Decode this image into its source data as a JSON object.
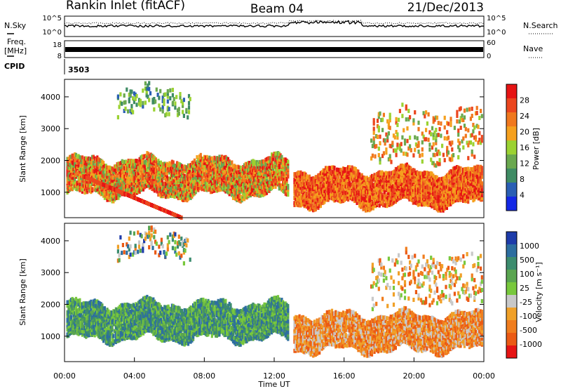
{
  "header": {
    "station": "Rankin Inlet (fitACF)",
    "beam": "Beam 04",
    "date": "21/Dec/2013"
  },
  "noise_panel": {
    "left_label": "N.Sky",
    "right_label": "N.Search",
    "left_ticks": [
      "10^5",
      "10^0"
    ],
    "right_ticks": [
      "10^5",
      "10^0"
    ]
  },
  "freq_panel": {
    "left_label_1": "Freq.",
    "left_label_2": "[MHz]",
    "right_label": "Nave",
    "left_ticks": [
      "18",
      "8"
    ],
    "right_ticks": [
      "60",
      "0"
    ]
  },
  "cpid": {
    "label": "CPID",
    "value": "3503"
  },
  "chart_data": [
    {
      "type": "heatmap",
      "title": "",
      "xlabel": "",
      "ylabel": "Slant Range [km]",
      "xlim": [
        "00:00",
        "24:00"
      ],
      "ylim": [
        200,
        4550
      ],
      "yticks": [
        "1000",
        "2000",
        "3000",
        "4000"
      ],
      "colorbar": {
        "label": "Power [dB]",
        "ticks": [
          "4",
          "8",
          "12",
          "16",
          "20",
          "24",
          "28"
        ],
        "range": [
          0,
          32
        ],
        "colors": [
          "#1428e6",
          "#2a5fb4",
          "#3f8c64",
          "#6aa84f",
          "#9bd232",
          "#f5a01e",
          "#f0781e",
          "#eb461e",
          "#e61414"
        ]
      },
      "regions": [
        {
          "name": "main-band-early",
          "t": [
            0.0,
            12.8
          ],
          "range_km": [
            900,
            2100
          ],
          "level": "strong"
        },
        {
          "name": "diagonal-echo",
          "t": [
            1.0,
            6.8
          ],
          "range_km": [
            250,
            1500
          ],
          "level": "strong"
        },
        {
          "name": "main-band-late",
          "t": [
            13.0,
            24.0
          ],
          "range_km": [
            700,
            1700
          ],
          "level": "strong"
        },
        {
          "name": "high-range-scatter",
          "t": [
            3.0,
            7.2
          ],
          "range_km": [
            3600,
            4400
          ],
          "level": "weak"
        },
        {
          "name": "evening-scatter",
          "t": [
            17.5,
            24.0
          ],
          "range_km": [
            2000,
            3700
          ],
          "level": "medium"
        }
      ]
    },
    {
      "type": "heatmap",
      "title": "",
      "xlabel": "Time UT",
      "ylabel": "Slant Range [km]",
      "xlim": [
        "00:00",
        "24:00"
      ],
      "ylim": [
        200,
        4550
      ],
      "xticks": [
        "00:00",
        "04:00",
        "08:00",
        "12:00",
        "16:00",
        "20:00",
        "00:00"
      ],
      "yticks": [
        "1000",
        "2000",
        "3000",
        "4000"
      ],
      "colorbar": {
        "label": "Velocity [m s⁻¹]",
        "ticks": [
          "1000",
          "500",
          "100",
          "25",
          "-25",
          "-100",
          "-500",
          "-1000"
        ],
        "colors": [
          "#1e3caa",
          "#2d6ea0",
          "#3c8c6e",
          "#5aa550",
          "#78c83c",
          "#c8c8c8",
          "#f0a028",
          "#f07d1e",
          "#eb5a14",
          "#e61414"
        ]
      },
      "regions": [
        {
          "name": "main-band-early",
          "t": [
            0.0,
            12.8
          ],
          "range_km": [
            900,
            2100
          ],
          "velocity": "positive"
        },
        {
          "name": "main-band-late",
          "t": [
            13.0,
            24.0
          ],
          "range_km": [
            600,
            1700
          ],
          "velocity": "negative"
        }
      ]
    }
  ]
}
